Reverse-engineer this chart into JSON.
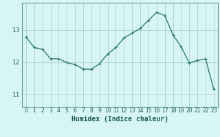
{
  "x": [
    0,
    1,
    2,
    3,
    4,
    5,
    6,
    7,
    8,
    9,
    10,
    11,
    12,
    13,
    14,
    15,
    16,
    17,
    18,
    19,
    20,
    21,
    22,
    23
  ],
  "y": [
    12.78,
    12.45,
    12.4,
    12.1,
    12.1,
    11.98,
    11.92,
    11.78,
    11.77,
    11.95,
    12.25,
    12.45,
    12.75,
    12.9,
    13.05,
    13.3,
    13.55,
    13.45,
    12.85,
    12.48,
    11.97,
    12.05,
    12.1,
    11.15
  ],
  "line_color": "#2e7d6e",
  "marker": "+",
  "markersize": 3.5,
  "linewidth": 1.0,
  "xlabel": "Humidex (Indice chaleur)",
  "bg_color": "#d8f5f5",
  "grid_color": "#aacfcf",
  "yticks": [
    11,
    12,
    13
  ],
  "ylim": [
    10.6,
    13.85
  ],
  "xlim": [
    -0.5,
    23.5
  ],
  "xlabel_fontsize": 7,
  "tick_fontsize": 6.5,
  "spine_color": "#5a9a8a"
}
